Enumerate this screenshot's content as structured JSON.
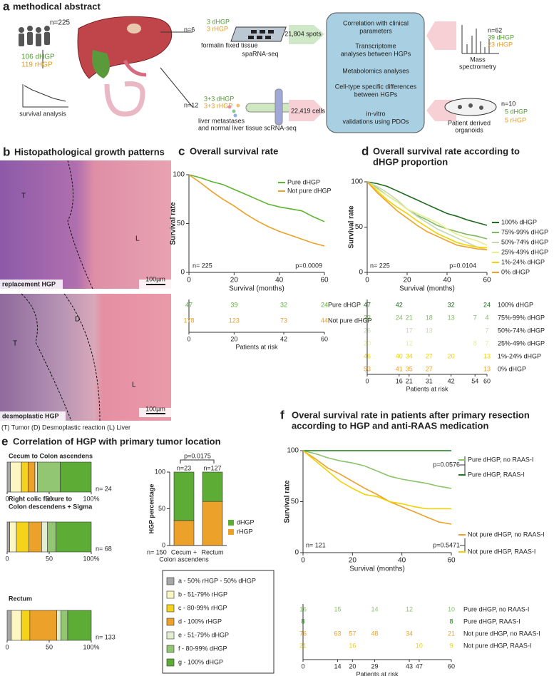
{
  "figure": {
    "panel_a": {
      "letter": "a",
      "title": "methodical abstract",
      "cohort_n": "n=225",
      "cohort_d": "106 dHGP",
      "cohort_r": "119 rHGP",
      "survival": "survival analysis",
      "spatial": {
        "n": "n=6",
        "d": "3 dHGP",
        "r": "3 rHGP",
        "tissue": "formalin fixed tissue",
        "method": "spaRNA-seq",
        "count": "21,804 spots"
      },
      "sc": {
        "n": "n=12",
        "d": "3+3 dHGP",
        "r": "3+3 rHGP",
        "tissue": [
          "liver metastases",
          "and normal liver tissue"
        ],
        "method": "scRNA-seq",
        "count": "22,419 cells"
      },
      "analyses": [
        [
          "Correlation with clinical",
          "parameters"
        ],
        [
          "Transcriptome",
          "analyses between HGPs"
        ],
        [
          "Metabolomics analyses"
        ],
        [
          "Cell-type specific differences",
          "between HGPs"
        ],
        [
          "in-vitro",
          "validations using PDOs"
        ]
      ],
      "mass": {
        "n": "n=62",
        "d": "39 dHGP",
        "r": "23 rHGP",
        "label": [
          "Mass",
          "spectrometry"
        ]
      },
      "pdo": {
        "n": "n=10",
        "d": "5 dHGP",
        "r": "5 rHGP",
        "label": [
          "Patient derived",
          "organoids"
        ]
      }
    },
    "panel_b": {
      "letter": "b",
      "title": "Histopathological growth patterns",
      "image1": {
        "labels": [
          "T",
          "L"
        ],
        "caption": "replacement HGP",
        "scale": "100µm"
      },
      "image2": {
        "labels": [
          "D",
          "T",
          "L"
        ],
        "caption": "desmoplastic HGP",
        "scale": "100µm"
      },
      "legend": "(T) Tumor (D) Desmoplastic reaction (L) Liver"
    }
  },
  "chart_data": [
    {
      "type": "line",
      "panel": "c",
      "title": [
        "Overall survival rate"
      ],
      "xlabel": "Survival (months)",
      "ylabel": "Survival rate",
      "x": [
        0,
        5,
        10,
        15,
        20,
        25,
        30,
        35,
        40,
        45,
        50,
        55,
        60
      ],
      "series": [
        {
          "name": "Pure dHGP",
          "color": "#5cb531",
          "values": [
            100,
            97,
            93,
            90,
            85,
            80,
            75,
            70,
            67,
            65,
            63,
            57,
            52
          ]
        },
        {
          "name": "Not pure dHGP",
          "color": "#eba12a",
          "values": [
            100,
            92,
            83,
            75,
            68,
            60,
            53,
            47,
            42,
            38,
            34,
            30,
            27
          ]
        }
      ],
      "xlim": [
        0,
        60
      ],
      "xticks": [
        0,
        20,
        40,
        60
      ],
      "ylim": [
        0,
        100
      ],
      "yticks": [
        0,
        50,
        100
      ],
      "annotations": {
        "n": "n= 225",
        "p": "p=0.0009"
      },
      "risk_table": {
        "title": "Patients at risk",
        "x": [
          0,
          20,
          42,
          60
        ],
        "rows": [
          {
            "label": "Pure dHGP",
            "values": [
              47,
              39,
              32,
              24
            ]
          },
          {
            "label": "Not pure dHGP",
            "values": [
              178,
              123,
              73,
              44
            ]
          }
        ]
      }
    },
    {
      "type": "line",
      "panel": "d",
      "title": [
        "Overall survival rate according  to",
        "dHGP proportion"
      ],
      "xlabel": "Survival (months)",
      "ylabel": "Survival rate",
      "x": [
        0,
        5,
        10,
        15,
        20,
        25,
        30,
        35,
        40,
        45,
        50,
        55,
        60
      ],
      "series": [
        {
          "name": "100% dHGP",
          "color": "#1d6b1d",
          "values": [
            100,
            98,
            95,
            90,
            85,
            80,
            75,
            70,
            65,
            62,
            58,
            55,
            52
          ]
        },
        {
          "name": "75%-99% dHGP",
          "color": "#7fb865",
          "values": [
            100,
            93,
            85,
            78,
            70,
            63,
            58,
            52,
            48,
            45,
            42,
            40,
            37
          ]
        },
        {
          "name": "50%-74% dHGP",
          "color": "#c5d8b5",
          "values": [
            100,
            95,
            88,
            80,
            70,
            62,
            55,
            48,
            43,
            38,
            33,
            28,
            25
          ]
        },
        {
          "name": "25%-49% dHGP",
          "color": "#e6ee8c",
          "values": [
            100,
            92,
            85,
            78,
            70,
            65,
            60,
            55,
            48,
            42,
            38,
            35,
            30
          ]
        },
        {
          "name": "1%-24% dHGP",
          "color": "#f2d100",
          "values": [
            100,
            90,
            80,
            72,
            65,
            57,
            50,
            43,
            38,
            33,
            30,
            28,
            27
          ]
        },
        {
          "name": "0% dHGP",
          "color": "#eba12a",
          "values": [
            100,
            88,
            78,
            68,
            60,
            52,
            45,
            40,
            35,
            30,
            28,
            26,
            25
          ]
        }
      ],
      "xlim": [
        0,
        60
      ],
      "xticks": [
        0,
        20,
        40,
        60
      ],
      "ylim": [
        0,
        100
      ],
      "yticks": [
        0,
        50,
        100
      ],
      "annotations": {
        "n": "n= 225",
        "p": "p=0.0104"
      },
      "risk_table": {
        "title": "Patients at risk",
        "x": [
          0,
          16,
          21,
          31,
          42,
          54,
          60
        ],
        "rows": [
          {
            "label": "100% dHGP",
            "values": [
              47,
              42,
              null,
              null,
              32,
              null,
              24
            ]
          },
          {
            "label": "75%-99% dHGP",
            "values": [
              33,
              24,
              21,
              18,
              13,
              7,
              4
            ]
          },
          {
            "label": "50%-74% dHGP",
            "values": [
              26,
              null,
              17,
              13,
              null,
              null,
              7
            ]
          },
          {
            "label": "25%-49% dHGP",
            "values": [
              20,
              null,
              12,
              null,
              null,
              8,
              7
            ]
          },
          {
            "label": "1%-24% dHGP",
            "values": [
              46,
              40,
              34,
              27,
              20,
              null,
              13
            ]
          },
          {
            "label": "0% dHGP",
            "values": [
              53,
              41,
              35,
              27,
              null,
              null,
              13
            ]
          }
        ]
      }
    },
    {
      "type": "bar",
      "stacked": true,
      "ylabel": "HGP percentage",
      "categories": [
        [
          "Cecum +",
          "Colon ascendens"
        ],
        [
          "Rectum"
        ]
      ],
      "series": [
        {
          "name": "rHGP",
          "color": "#eba12a",
          "values": [
            34,
            60
          ]
        },
        {
          "name": "dHGP",
          "color": "#5cac36",
          "values": [
            66,
            40
          ]
        }
      ],
      "ylim": [
        0,
        100
      ],
      "yticks": [
        0,
        50,
        100
      ],
      "annotations": {
        "p": "p=0.0175",
        "n1": "n=23",
        "n2": "n=127",
        "n": "n= 150"
      }
    },
    {
      "type": "hbar",
      "stacked": true,
      "panel": "e",
      "title": [
        "Correlation of HGP with primary tumor location"
      ],
      "categories": [
        [
          "Cecum to Colon ascendens"
        ],
        [
          "Right colic flexure to",
          "Colon descendens + Sigma"
        ],
        [
          "Rectum"
        ]
      ],
      "n_labels": [
        "n= 24",
        "n= 68",
        "n= 133"
      ],
      "series": [
        {
          "name": "a - 50% rHGP - 50% dHGP",
          "color": "#a8a8a8",
          "values": [
            4,
            3,
            5
          ]
        },
        {
          "name": "b - 51-79% rHGP",
          "color": "#fbf6c2",
          "values": [
            13,
            8,
            12
          ]
        },
        {
          "name": "c - 80-99% rHGP",
          "color": "#f5d31a",
          "values": [
            8,
            15,
            10
          ]
        },
        {
          "name": "d - 100% rHGP",
          "color": "#eba12a",
          "values": [
            8,
            15,
            32
          ]
        },
        {
          "name": "e - 51-79% dHGP",
          "color": "#e3edcf",
          "values": [
            3,
            7,
            5
          ]
        },
        {
          "name": "f -  80-99% dHGP",
          "color": "#93c672",
          "values": [
            27,
            10,
            8
          ]
        },
        {
          "name": "g - 100% dHGP",
          "color": "#5cac36",
          "values": [
            37,
            42,
            28
          ]
        }
      ],
      "xlim": [
        0,
        100
      ],
      "xticks": [
        0,
        50,
        {
          "value": 100,
          "label": "100%"
        }
      ]
    },
    {
      "type": "line",
      "panel": "f",
      "title": [
        "Overal survival rate in patients after primary resection",
        "according to HGP and anti-RAAS medication"
      ],
      "xlabel": "Survival (months)",
      "ylabel": "Survival rate",
      "x": [
        0,
        5,
        10,
        15,
        20,
        25,
        30,
        35,
        40,
        45,
        50,
        55,
        60
      ],
      "series": [
        {
          "name": "Pure dHGP, no RAAS-I",
          "color": "#8cc46e",
          "values": [
            100,
            97,
            93,
            90,
            88,
            85,
            80,
            75,
            72,
            70,
            68,
            65,
            63
          ]
        },
        {
          "name": "Pure dHGP, RAAS-I",
          "color": "#1d7a1d",
          "values": [
            100,
            100,
            100,
            100,
            100,
            100,
            100,
            100,
            100,
            100,
            100,
            100,
            100
          ]
        },
        {
          "name": "Not pure dHGP, no RAAS-I",
          "color": "#eba12a",
          "values": [
            100,
            92,
            83,
            77,
            70,
            63,
            57,
            50,
            45,
            40,
            35,
            30,
            28
          ]
        },
        {
          "name": "Not pure dHGP, RAAS-I",
          "color": "#f2d100",
          "values": [
            100,
            90,
            80,
            70,
            63,
            57,
            55,
            50,
            48,
            45,
            43,
            43,
            43
          ]
        }
      ],
      "xlim": [
        0,
        60
      ],
      "xticks": [
        0,
        20,
        40,
        60
      ],
      "ylim": [
        0,
        100
      ],
      "yticks": [
        0,
        50,
        100
      ],
      "annotations": {
        "n": "n= 121",
        "p1": "p=0.0576",
        "p2": "p=0.5471"
      },
      "risk_table": {
        "title": "Patients at risk",
        "x": [
          0,
          14,
          20,
          29,
          43,
          47,
          60
        ],
        "rows": [
          {
            "label": "Pure dHGP, no RAAS-I",
            "values": [
              16,
              15,
              null,
              14,
              12,
              null,
              10
            ]
          },
          {
            "label": "Pure dHGP, RAAS-I",
            "values": [
              8,
              null,
              null,
              null,
              null,
              null,
              8
            ]
          },
          {
            "label": "Not pure dHGP, no RAAS-I",
            "values": [
              76,
              63,
              57,
              48,
              34,
              null,
              21
            ]
          },
          {
            "label": "Not pure dHGP, RAAS-I",
            "values": [
              21,
              null,
              16,
              null,
              null,
              10,
              9
            ]
          }
        ]
      }
    }
  ]
}
